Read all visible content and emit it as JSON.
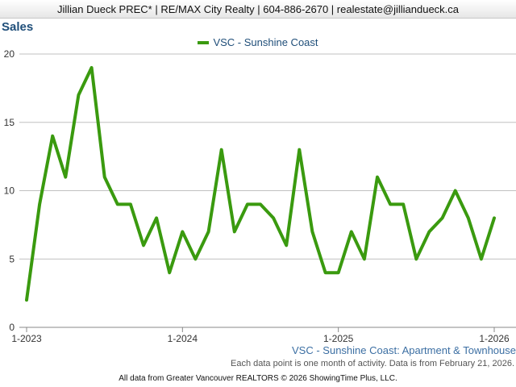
{
  "header": {
    "text": "Jillian Dueck PREC* | RE/MAX City Realty | 604-886-2670 | realestate@jilliandueck.ca"
  },
  "footer": {
    "note": "Each data point is one month of activity. Data is from February 21, 2026.",
    "copyright": "All data from Greater Vancouver REALTORS © 2026 ShowingTime Plus, LLC."
  },
  "chart_data": {
    "type": "line",
    "title": "Sales",
    "subtitle": "VSC - Sunshine Coast: Apartment & Townhouse",
    "x_start": "2023-01",
    "x_step": "1 month",
    "x_tick_labels": [
      "1-2023",
      "1-2024",
      "1-2025",
      "1-2026"
    ],
    "y_ticks": [
      0,
      5,
      10,
      15,
      20
    ],
    "ylim": [
      0,
      20
    ],
    "grid": true,
    "legend_position": "top-center",
    "series": [
      {
        "name": "VSC - Sunshine Coast",
        "color": "#3a9a0f",
        "values": [
          2,
          9,
          14,
          11,
          17,
          19,
          11,
          9,
          9,
          6,
          8,
          4,
          7,
          5,
          7,
          13,
          7,
          9,
          9,
          8,
          6,
          13,
          7,
          4,
          4,
          7,
          5,
          11,
          9,
          9,
          5,
          7,
          8,
          10,
          8,
          5,
          8
        ]
      }
    ]
  }
}
